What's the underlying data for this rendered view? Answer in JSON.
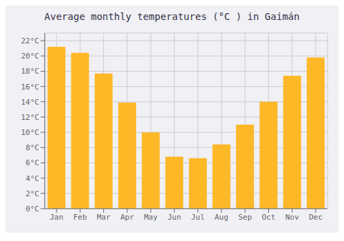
{
  "chart_data": {
    "type": "bar",
    "title": "Average monthly temperatures (°C ) in Gaimán",
    "categories": [
      "Jan",
      "Feb",
      "Mar",
      "Apr",
      "May",
      "Jun",
      "Jul",
      "Aug",
      "Sep",
      "Oct",
      "Nov",
      "Dec"
    ],
    "values": [
      21.2,
      20.4,
      17.7,
      13.9,
      10.0,
      6.8,
      6.6,
      8.4,
      11.0,
      14.0,
      17.4,
      19.8
    ],
    "color": "#FDB827",
    "ylim": [
      0,
      23
    ],
    "yticks": [
      {
        "value": 0,
        "label": "0°C"
      },
      {
        "value": 2,
        "label": "2°C"
      },
      {
        "value": 4,
        "label": "4°C"
      },
      {
        "value": 6,
        "label": "6°C"
      },
      {
        "value": 8,
        "label": "8°C"
      },
      {
        "value": 10,
        "label": "10°C"
      },
      {
        "value": 12,
        "label": "12°C"
      },
      {
        "value": 14,
        "label": "14°C"
      },
      {
        "value": 16,
        "label": "16°C"
      },
      {
        "value": 18,
        "label": "18°C"
      },
      {
        "value": 20,
        "label": "20°C"
      },
      {
        "value": 22,
        "label": "22°C"
      }
    ],
    "grid": true
  }
}
